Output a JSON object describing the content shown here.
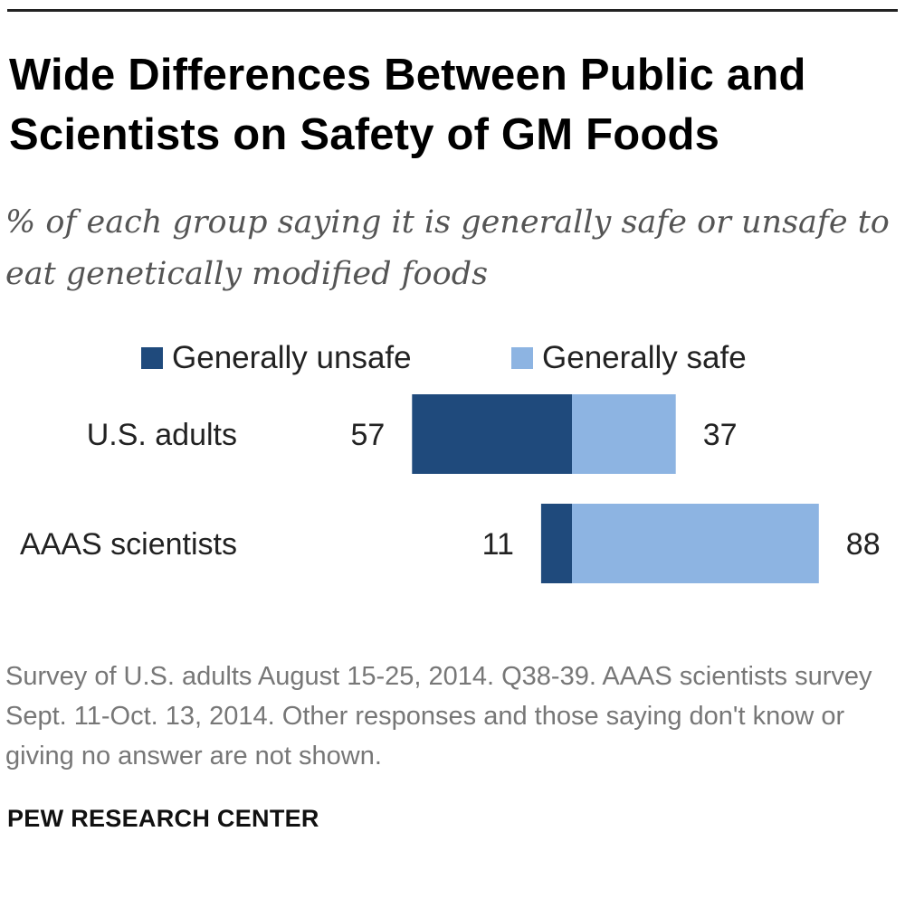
{
  "header": {
    "title": "Wide Differences Between Public and Scientists on Safety of GM Foods",
    "subtitle": "% of each group saying it is generally safe or unsafe to eat genetically modified foods"
  },
  "colors": {
    "unsafe": "#1f4a7c",
    "safe": "#8db4e2",
    "text": "#222222",
    "muted": "#777777"
  },
  "chart_data": {
    "type": "bar",
    "orientation": "horizontal",
    "stacked": "diverging",
    "title": "Wide Differences Between Public and Scientists on Safety of GM Foods",
    "subtitle": "% of each group saying it is generally safe or unsafe to eat genetically modified foods",
    "categories": [
      "U.S. adults",
      "AAAS scientists"
    ],
    "series": [
      {
        "name": "Generally unsafe",
        "values": [
          57,
          11
        ],
        "color": "#1f4a7c",
        "direction": "left"
      },
      {
        "name": "Generally safe",
        "values": [
          37,
          88
        ],
        "color": "#8db4e2",
        "direction": "right"
      }
    ],
    "data_labels": {
      "unsafe": [
        "57",
        "11"
      ],
      "safe": [
        "37",
        "88"
      ]
    },
    "legend": [
      "Generally unsafe",
      "Generally safe"
    ],
    "legend_position": "top",
    "xlabel": "",
    "ylabel": "",
    "grid": false
  },
  "footer": {
    "note": "Survey of U.S. adults August 15-25, 2014. Q38-39. AAAS scientists survey Sept. 11-Oct. 13, 2014. Other responses and those saying don't know or giving no answer are not shown.",
    "source": "PEW RESEARCH CENTER"
  }
}
